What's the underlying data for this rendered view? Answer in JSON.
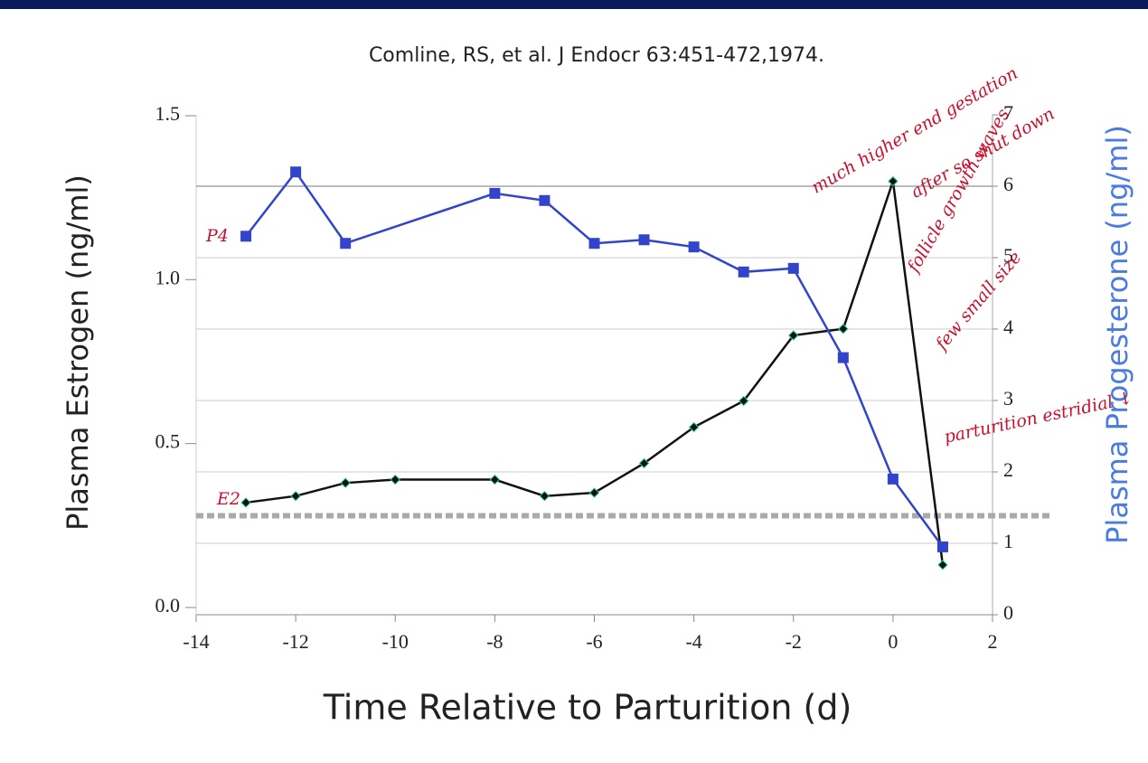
{
  "chart_data": {
    "type": "line",
    "title": "Comline, RS, et al. J Endocr 63:451-472,1974.",
    "x_label": "Time Relative to Parturition (d)",
    "y_label": "Plasma Estrogen (ng/ml)",
    "y2_label": "Plasma Progesterone (ng/ml)",
    "xlim": [
      -14,
      2
    ],
    "xticks": [
      -14,
      -12,
      -10,
      -8,
      -6,
      -4,
      -2,
      0,
      2
    ],
    "ylim": [
      0,
      1.5
    ],
    "yticks": [
      {
        "value": 0,
        "label": "0.0"
      },
      {
        "value": 0.5,
        "label": "0.5"
      },
      {
        "value": 1,
        "label": "1.0"
      },
      {
        "value": 1.5,
        "label": "1.5"
      }
    ],
    "y2lim": [
      0,
      7
    ],
    "y2ticks": [
      0,
      1,
      2,
      3,
      4,
      5,
      6,
      7
    ],
    "grid": true,
    "reference_line": 0.28,
    "series": [
      {
        "name": "E2",
        "color": "#111111",
        "axis": "y",
        "x": [
          -13,
          -12,
          -11,
          -10,
          -8,
          -7,
          -6,
          -5,
          -4,
          -3,
          -2,
          -1,
          0,
          1
        ],
        "values": [
          0.32,
          0.34,
          0.38,
          0.39,
          0.39,
          0.34,
          0.35,
          0.44,
          0.55,
          0.63,
          0.83,
          0.85,
          1.3,
          0.13
        ]
      },
      {
        "name": "P4",
        "color": "#3344cc",
        "axis": "y2",
        "x": [
          -13,
          -12,
          -11,
          -8,
          -7,
          -6,
          -5,
          -4,
          -3,
          -2,
          -1,
          0,
          1
        ],
        "values": [
          5.3,
          6.2,
          5.2,
          5.9,
          5.8,
          5.2,
          5.25,
          5.15,
          4.8,
          4.85,
          3.6,
          1.9,
          0.95
        ]
      }
    ],
    "annotations": [
      "much higher end gestation",
      "after so shut down",
      "follicle growth waves",
      "few small size",
      "parturition estridial ↓"
    ]
  }
}
